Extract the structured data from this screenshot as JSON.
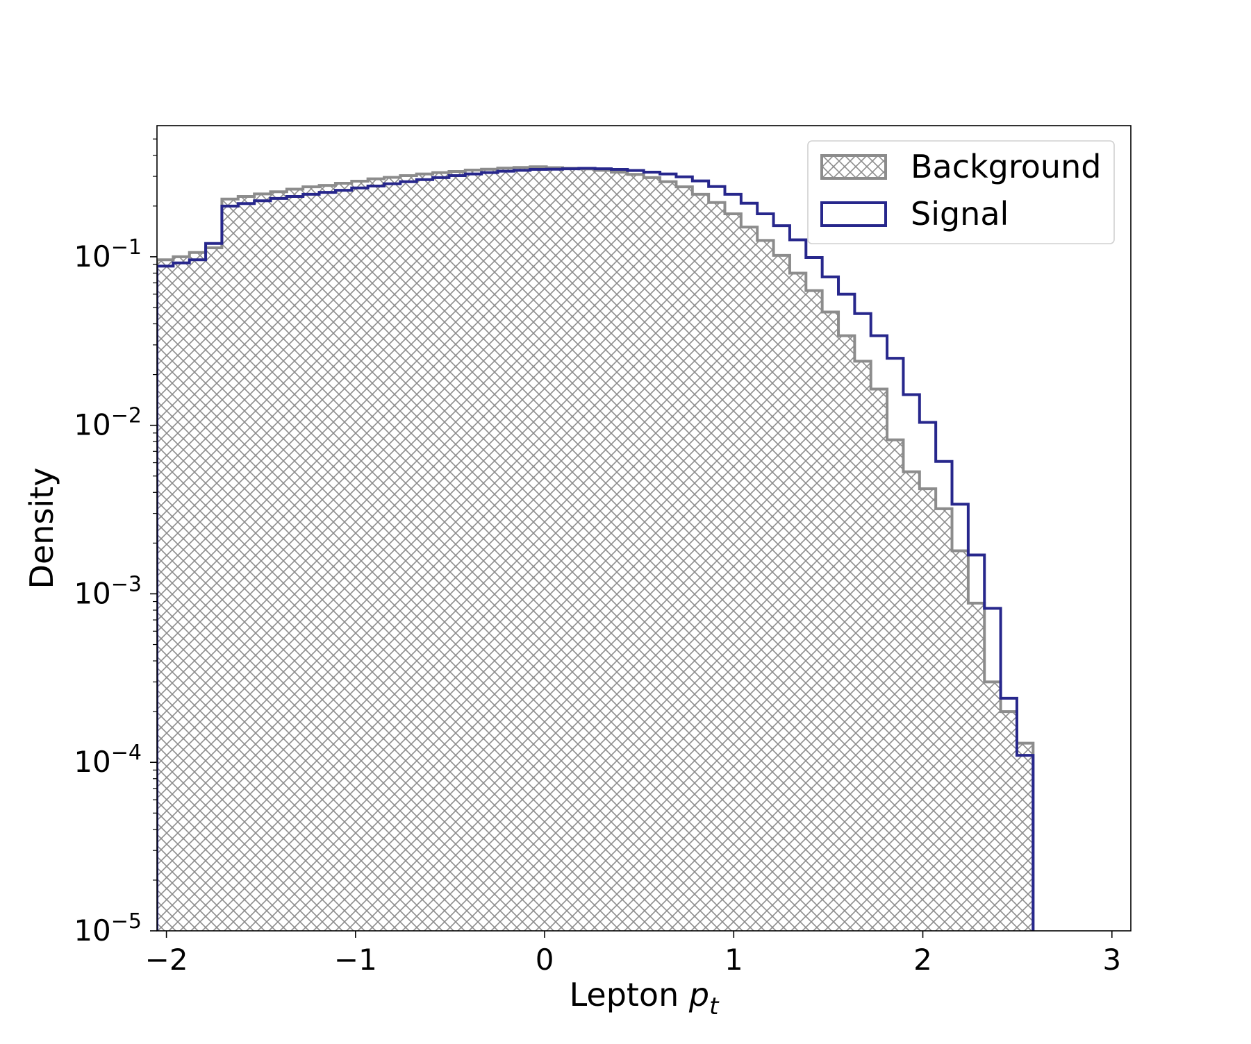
{
  "chart_data": {
    "type": "histogram",
    "xlabel": "Lepton ",
    "xlabel_var": "p",
    "xlabel_sub": "t",
    "ylabel": "Density",
    "y_scale": "log",
    "xlim": [
      -2.05,
      3.1
    ],
    "ylim": [
      1e-05,
      0.6
    ],
    "x_ticks": [
      -2,
      -1,
      0,
      1,
      2,
      3
    ],
    "x_tick_labels": [
      "−2",
      "−1",
      "0",
      "1",
      "2",
      "3"
    ],
    "y_ticks": [
      1e-05,
      0.0001,
      0.001,
      0.01,
      0.1
    ],
    "y_tick_labels": [
      {
        "base": "10",
        "exp": "−5"
      },
      {
        "base": "10",
        "exp": "−4"
      },
      {
        "base": "10",
        "exp": "−3"
      },
      {
        "base": "10",
        "exp": "−2"
      },
      {
        "base": "10",
        "exp": "−1"
      }
    ],
    "legend_position": "top-right",
    "bin_edges_start": -2.05,
    "bin_width": 0.0858,
    "series": [
      {
        "name": "Background",
        "style": "hatched",
        "color": "#8c8c8c",
        "values": [
          0.096,
          0.1,
          0.106,
          0.113,
          0.22,
          0.228,
          0.236,
          0.243,
          0.252,
          0.26,
          0.265,
          0.273,
          0.281,
          0.29,
          0.296,
          0.303,
          0.31,
          0.316,
          0.321,
          0.327,
          0.331,
          0.336,
          0.339,
          0.342,
          0.338,
          0.335,
          0.332,
          0.326,
          0.318,
          0.308,
          0.295,
          0.279,
          0.26,
          0.235,
          0.21,
          0.18,
          0.15,
          0.125,
          0.102,
          0.08,
          0.063,
          0.047,
          0.034,
          0.024,
          0.0164,
          0.0082,
          0.0053,
          0.0042,
          0.0032,
          0.0018,
          0.00088,
          0.0003,
          0.0002,
          0.00013
        ]
      },
      {
        "name": "Signal",
        "style": "step",
        "color": "#27278c",
        "values": [
          0.088,
          0.092,
          0.096,
          0.12,
          0.2,
          0.207,
          0.215,
          0.222,
          0.228,
          0.235,
          0.241,
          0.248,
          0.256,
          0.263,
          0.271,
          0.279,
          0.287,
          0.295,
          0.303,
          0.31,
          0.316,
          0.322,
          0.326,
          0.33,
          0.331,
          0.333,
          0.335,
          0.333,
          0.33,
          0.325,
          0.318,
          0.31,
          0.298,
          0.282,
          0.261,
          0.235,
          0.208,
          0.18,
          0.153,
          0.126,
          0.099,
          0.076,
          0.06,
          0.046,
          0.034,
          0.025,
          0.0152,
          0.0104,
          0.0061,
          0.0034,
          0.0017,
          0.00082,
          0.00024,
          0.00011
        ]
      }
    ]
  }
}
